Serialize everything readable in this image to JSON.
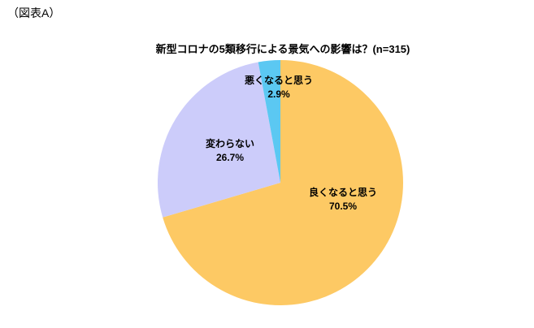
{
  "figure_label": "（図表A）",
  "chart_data": {
    "type": "pie",
    "title": "新型コロナの5類移行による景気への影響は？(n=315)",
    "n": 315,
    "start_angle_deg": 0,
    "direction": "clockwise",
    "legend": "none",
    "label_style": "category-and-percent-inside",
    "slices": [
      {
        "label": "良くなると思う",
        "value": 70.5,
        "value_label": "70.5%",
        "color": "#FDC964"
      },
      {
        "label": "変わらない",
        "value": 26.7,
        "value_label": "26.7%",
        "color": "#CCCCFA"
      },
      {
        "label": "悪くなると思う",
        "value": 2.9,
        "value_label": "2.9%",
        "color": "#5BC8F2"
      }
    ]
  }
}
